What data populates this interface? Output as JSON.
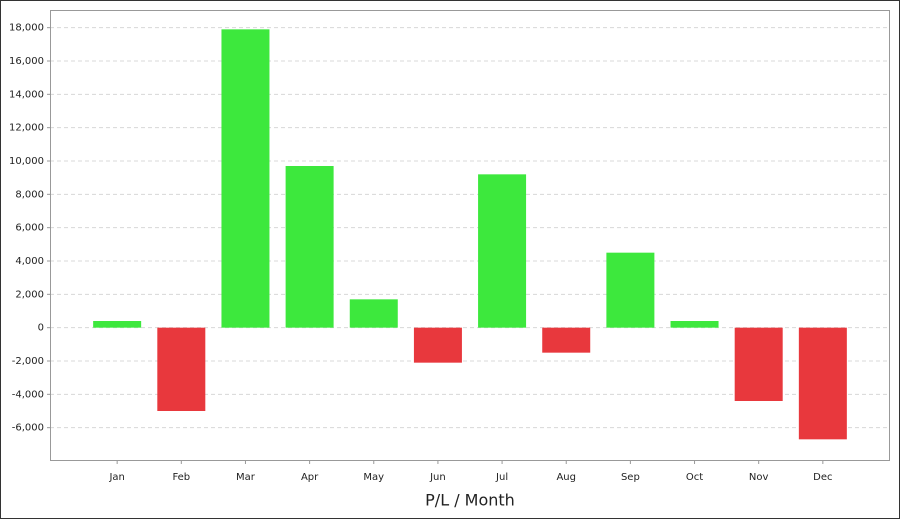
{
  "chart_data": {
    "type": "bar",
    "x_label": "P/L / Month",
    "categories": [
      "Jan",
      "Feb",
      "Mar",
      "Apr",
      "May",
      "Jun",
      "Jul",
      "Aug",
      "Sep",
      "Oct",
      "Nov",
      "Dec"
    ],
    "values": [
      400,
      -5000,
      17900,
      9700,
      1700,
      -2100,
      9200,
      -1500,
      4500,
      400,
      -4400,
      -6700
    ],
    "colors": [
      "#3de83d",
      "#e8383d",
      "#3de83d",
      "#3de83d",
      "#3de83d",
      "#e8383d",
      "#3de83d",
      "#e8383d",
      "#3de83d",
      "#3de83d",
      "#e8383d",
      "#e8383d"
    ],
    "ylim": [
      -8000,
      19000
    ],
    "yticks": [
      {
        "value": -6000,
        "label": "-6,000"
      },
      {
        "value": -4000,
        "label": "-4,000"
      },
      {
        "value": -2000,
        "label": "-2,000"
      },
      0,
      {
        "value": 2000,
        "label": "2,000"
      },
      {
        "value": 4000,
        "label": "4,000"
      },
      {
        "value": 6000,
        "label": "6,000"
      },
      {
        "value": 8000,
        "label": "8,000"
      },
      {
        "value": 10000,
        "label": "10,000"
      },
      {
        "value": 12000,
        "label": "12,000"
      },
      {
        "value": 14000,
        "label": "14,000"
      },
      {
        "value": 16000,
        "label": "16,000"
      },
      {
        "value": 18000,
        "label": "18,000"
      }
    ],
    "grid": true
  }
}
